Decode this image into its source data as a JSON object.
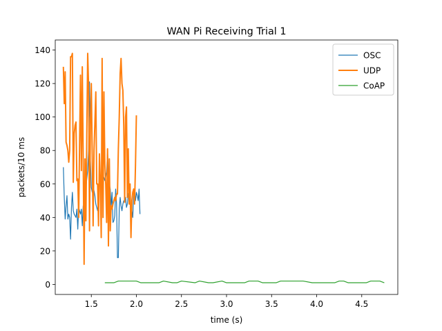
{
  "chart_data": {
    "type": "line",
    "title": "WAN Pi Receiving Trial 1",
    "xlabel": "time (s)",
    "ylabel": "packets/10 ms",
    "xlim": [
      1.1,
      4.9
    ],
    "ylim": [
      -6,
      146
    ],
    "xticks": [
      1.5,
      2.0,
      2.5,
      3.0,
      3.5,
      4.0,
      4.5
    ],
    "xtick_labels": [
      "1.5",
      "2.0",
      "2.5",
      "3.0",
      "3.5",
      "4.0",
      "4.5"
    ],
    "yticks": [
      0,
      20,
      40,
      60,
      80,
      100,
      120,
      140
    ],
    "ytick_labels": [
      "0",
      "20",
      "40",
      "60",
      "80",
      "100",
      "120",
      "140"
    ],
    "grid": false,
    "legend_position": "top-right",
    "series": [
      {
        "name": "OSC",
        "color": "#1f77b4",
        "x": [
          1.19,
          1.2,
          1.21,
          1.22,
          1.23,
          1.24,
          1.25,
          1.26,
          1.27,
          1.28,
          1.29,
          1.3,
          1.31,
          1.32,
          1.33,
          1.34,
          1.35,
          1.36,
          1.37,
          1.38,
          1.39,
          1.4,
          1.41,
          1.42,
          1.43,
          1.44,
          1.45,
          1.46,
          1.47,
          1.48,
          1.49,
          1.5,
          1.51,
          1.52,
          1.53,
          1.54,
          1.55,
          1.56,
          1.57,
          1.58,
          1.59,
          1.6,
          1.61,
          1.62,
          1.63,
          1.64,
          1.65,
          1.66,
          1.67,
          1.68,
          1.69,
          1.7,
          1.71,
          1.72,
          1.73,
          1.74,
          1.75,
          1.76,
          1.77,
          1.78,
          1.79,
          1.8,
          1.81,
          1.82,
          1.83,
          1.84,
          1.85,
          1.86,
          1.87,
          1.88,
          1.89,
          1.9,
          1.91,
          1.92,
          1.93,
          1.94,
          1.95,
          1.96,
          1.97,
          1.98,
          1.99,
          2.0,
          2.01,
          2.02,
          2.03,
          2.04
        ],
        "y": [
          70,
          52,
          39,
          47,
          53,
          39,
          42,
          40,
          27,
          46,
          55,
          44,
          42,
          41,
          40,
          45,
          33,
          46,
          44,
          42,
          45,
          35,
          47,
          45,
          49,
          57,
          63,
          68,
          80,
          121,
          74,
          58,
          55,
          58,
          56,
          53,
          48,
          46,
          44,
          56,
          60,
          63,
          63,
          63,
          64,
          64,
          62,
          64,
          67,
          80,
          68,
          60,
          57,
          46,
          55,
          37,
          38,
          41,
          57,
          48,
          16,
          16,
          45,
          52,
          47,
          44,
          48,
          50,
          50,
          52,
          46,
          48,
          54,
          55,
          50,
          46,
          44,
          40,
          54,
          56,
          50,
          55,
          53,
          50,
          57,
          42
        ]
      },
      {
        "name": "UDP",
        "color": "#ff7f0e",
        "x": [
          1.19,
          1.2,
          1.21,
          1.22,
          1.23,
          1.24,
          1.25,
          1.26,
          1.27,
          1.28,
          1.29,
          1.3,
          1.31,
          1.32,
          1.33,
          1.34,
          1.35,
          1.36,
          1.37,
          1.38,
          1.39,
          1.4,
          1.41,
          1.42,
          1.43,
          1.44,
          1.45,
          1.46,
          1.47,
          1.48,
          1.49,
          1.5,
          1.51,
          1.52,
          1.53,
          1.54,
          1.55,
          1.56,
          1.57,
          1.58,
          1.59,
          1.6,
          1.61,
          1.62,
          1.63,
          1.64,
          1.65,
          1.66,
          1.67,
          1.68,
          1.69,
          1.7,
          1.71,
          1.72,
          1.73,
          1.74,
          1.75,
          1.76,
          1.77,
          1.78,
          1.79,
          1.8,
          1.81,
          1.82,
          1.83,
          1.84,
          1.85,
          1.86,
          1.87,
          1.88,
          1.89,
          1.9,
          1.91,
          1.92,
          1.93,
          1.94,
          1.95,
          1.96,
          1.97,
          1.98,
          1.99,
          2.0
        ],
        "y": [
          130,
          108,
          127,
          85,
          83,
          80,
          73,
          80,
          136,
          136,
          138,
          61,
          90,
          95,
          97,
          62,
          63,
          40,
          85,
          125,
          68,
          130,
          76,
          12,
          75,
          38,
          90,
          138,
          118,
          32,
          96,
          120,
          78,
          35,
          80,
          97,
          115,
          60,
          60,
          35,
          78,
          62,
          28,
          135,
          40,
          115,
          72,
          60,
          37,
          81,
          23,
          75,
          32,
          47,
          45,
          48,
          50,
          52,
          50,
          54,
          54,
          81,
          100,
          126,
          135,
          120,
          116,
          95,
          49,
          100,
          106,
          52,
          81,
          48,
          60,
          28,
          50,
          55,
          57,
          48,
          71,
          101
        ]
      },
      {
        "name": "CoAP",
        "color": "#2ca02c",
        "x": [
          1.65,
          1.75,
          1.8,
          2.0,
          2.05,
          2.25,
          2.3,
          2.4,
          2.45,
          2.5,
          2.65,
          2.7,
          2.8,
          2.85,
          2.95,
          3.0,
          3.2,
          3.25,
          3.35,
          3.4,
          3.55,
          3.6,
          3.75,
          3.85,
          3.95,
          4.0,
          4.2,
          4.25,
          4.3,
          4.35,
          4.55,
          4.6,
          4.65,
          4.7,
          4.75
        ],
        "y": [
          1,
          1,
          2,
          2,
          1,
          1,
          2,
          1,
          1,
          2,
          1,
          2,
          1,
          1,
          2,
          1,
          1,
          2,
          2,
          1,
          1,
          2,
          2,
          2,
          1,
          1,
          1,
          2,
          2,
          1,
          1,
          2,
          2,
          2,
          1
        ]
      }
    ]
  }
}
